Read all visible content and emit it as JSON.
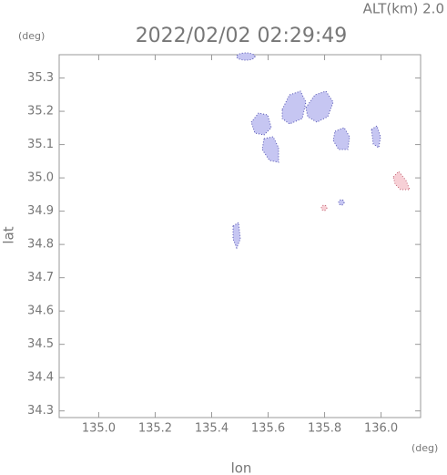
{
  "chart_data": {
    "type": "map",
    "title": "2022/02/02 02:29:49",
    "annotation": "ALT(km) 2.0",
    "x_label": "lon",
    "y_label": "lat",
    "x_unit": "(deg)",
    "y_unit": "(deg)",
    "xlim": [
      134.86,
      136.14
    ],
    "ylim": [
      34.28,
      35.37
    ],
    "xticks": [
      {
        "value": 135,
        "label": "135.0"
      },
      135.2,
      135.4,
      135.6,
      135.8,
      {
        "value": 136,
        "label": "136.0"
      }
    ],
    "yticks": [
      34.3,
      34.4,
      34.5,
      34.6,
      34.7,
      34.8,
      34.9,
      {
        "value": 35,
        "label": "35.0"
      },
      35.1,
      35.2,
      35.3
    ]
  }
}
